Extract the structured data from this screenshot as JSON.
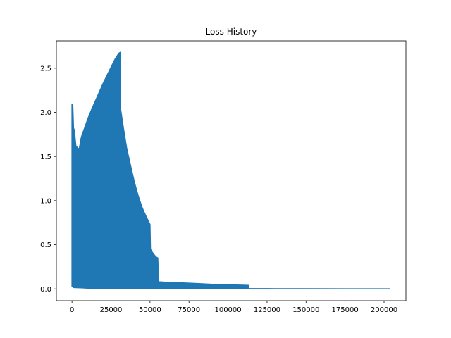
{
  "chart_data": {
    "type": "line",
    "title": "Loss History",
    "xlabel": "",
    "ylabel": "",
    "xlim": [
      -10000,
      214000
    ],
    "ylim": [
      -0.134,
      2.81
    ],
    "xticks": [
      0,
      25000,
      50000,
      75000,
      100000,
      125000,
      150000,
      175000,
      200000
    ],
    "xtick_labels": [
      "0",
      "25000",
      "50000",
      "75000",
      "100000",
      "125000",
      "150000",
      "175000",
      "200000"
    ],
    "yticks": [
      0.0,
      0.5,
      1.0,
      1.5,
      2.0,
      2.5
    ],
    "ytick_labels": [
      "0.0",
      "0.5",
      "1.0",
      "1.5",
      "2.0",
      "2.5"
    ],
    "grid": false,
    "series_color": "#1f77b4",
    "series": [
      {
        "x_range": [
          0,
          204000
        ],
        "upper_envelope": {
          "x": [
            0,
            500,
            1000,
            1500,
            2500,
            4500,
            5000,
            6000,
            8000,
            10000,
            12500,
            15000,
            17500,
            20000,
            22500,
            25000,
            27500,
            30000,
            31000,
            31200,
            33000,
            35000,
            37500,
            40000,
            42500,
            45000,
            47500,
            50000,
            50300,
            51000,
            52000,
            53000,
            54000,
            55000,
            55500,
            60000,
            70000,
            80000,
            90000,
            100000,
            105000,
            110000,
            113000,
            113500,
            130000,
            150000,
            175000,
            204000
          ],
          "y": [
            2.09,
            2.09,
            1.82,
            1.8,
            1.62,
            1.58,
            1.62,
            1.72,
            1.82,
            1.92,
            2.03,
            2.13,
            2.23,
            2.33,
            2.42,
            2.51,
            2.6,
            2.67,
            2.68,
            2.03,
            1.82,
            1.6,
            1.4,
            1.21,
            1.05,
            0.92,
            0.82,
            0.73,
            0.45,
            0.43,
            0.4,
            0.38,
            0.36,
            0.35,
            0.08,
            0.075,
            0.068,
            0.06,
            0.052,
            0.046,
            0.044,
            0.042,
            0.04,
            0.003,
            0.002,
            0.002,
            0.001,
            0.001
          ]
        },
        "lower_envelope": {
          "x": [
            0,
            1000,
            10000,
            30000,
            55000,
            113000,
            204000
          ],
          "y": [
            0.03,
            0.015,
            0.008,
            0.004,
            0.002,
            0.001,
            0.001
          ]
        }
      }
    ]
  }
}
